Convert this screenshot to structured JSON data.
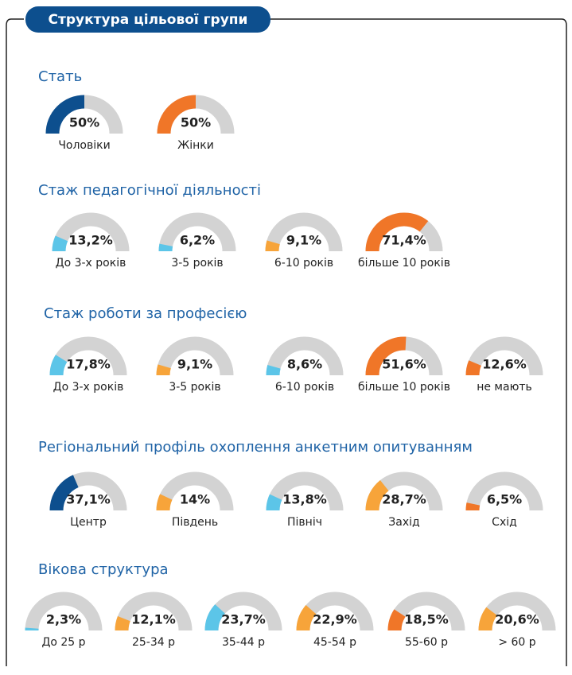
{
  "title": "Структура цільової групи",
  "chart_data": [
    {
      "type": "gauge",
      "title": "Стать",
      "categories": [
        "Чоловіки",
        "Жінки"
      ],
      "values": [
        50,
        50
      ],
      "value_labels": [
        "50%",
        "50%"
      ],
      "colors": [
        "#0d4f8e",
        "#f07628"
      ]
    },
    {
      "type": "gauge",
      "title": "Стаж педагогічної діяльності",
      "categories": [
        "До 3-х років",
        "3-5 років",
        "6-10 років",
        "більше 10 років"
      ],
      "values": [
        13.2,
        6.2,
        9.1,
        71.4
      ],
      "value_labels": [
        "13,2%",
        "6,2%",
        "9,1%",
        "71,4%"
      ],
      "colors": [
        "#5cc5e8",
        "#5cc5e8",
        "#f7a43a",
        "#f07628"
      ]
    },
    {
      "type": "gauge",
      "title": "Стаж роботи за професією",
      "categories": [
        "До 3-х років",
        "3-5 років",
        "6-10 років",
        "більше 10 років",
        "не мають"
      ],
      "values": [
        17.8,
        9.1,
        8.6,
        51.6,
        12.6
      ],
      "value_labels": [
        "17,8%",
        "9,1%",
        "8,6%",
        "51,6%",
        "12,6%"
      ],
      "colors": [
        "#5cc5e8",
        "#f7a43a",
        "#5cc5e8",
        "#f07628",
        "#f07628"
      ]
    },
    {
      "type": "gauge",
      "title": "Регіональний профіль охоплення анкетним опитуванням",
      "categories": [
        "Центр",
        "Південь",
        "Північ",
        "Захід",
        "Схід"
      ],
      "values": [
        37.1,
        14,
        13.8,
        28.7,
        6.5
      ],
      "value_labels": [
        "37,1%",
        "14%",
        "13,8%",
        "28,7%",
        "6,5%"
      ],
      "colors": [
        "#0d4f8e",
        "#f7a43a",
        "#5cc5e8",
        "#f7a43a",
        "#f07628"
      ]
    },
    {
      "type": "gauge",
      "title": "Вікова структура",
      "categories": [
        "До 25 р",
        "25-34 р",
        "35-44 р",
        "45-54 р",
        "55-60 р",
        "> 60 р"
      ],
      "values": [
        2.3,
        12.1,
        23.7,
        22.9,
        18.5,
        20.6
      ],
      "value_labels": [
        "2,3%",
        "12,1%",
        "23,7%",
        "22,9%",
        "18,5%",
        "20,6%"
      ],
      "colors": [
        "#5cc5e8",
        "#f7a43a",
        "#5cc5e8",
        "#f7a43a",
        "#f07628",
        "#f7a43a"
      ]
    }
  ]
}
